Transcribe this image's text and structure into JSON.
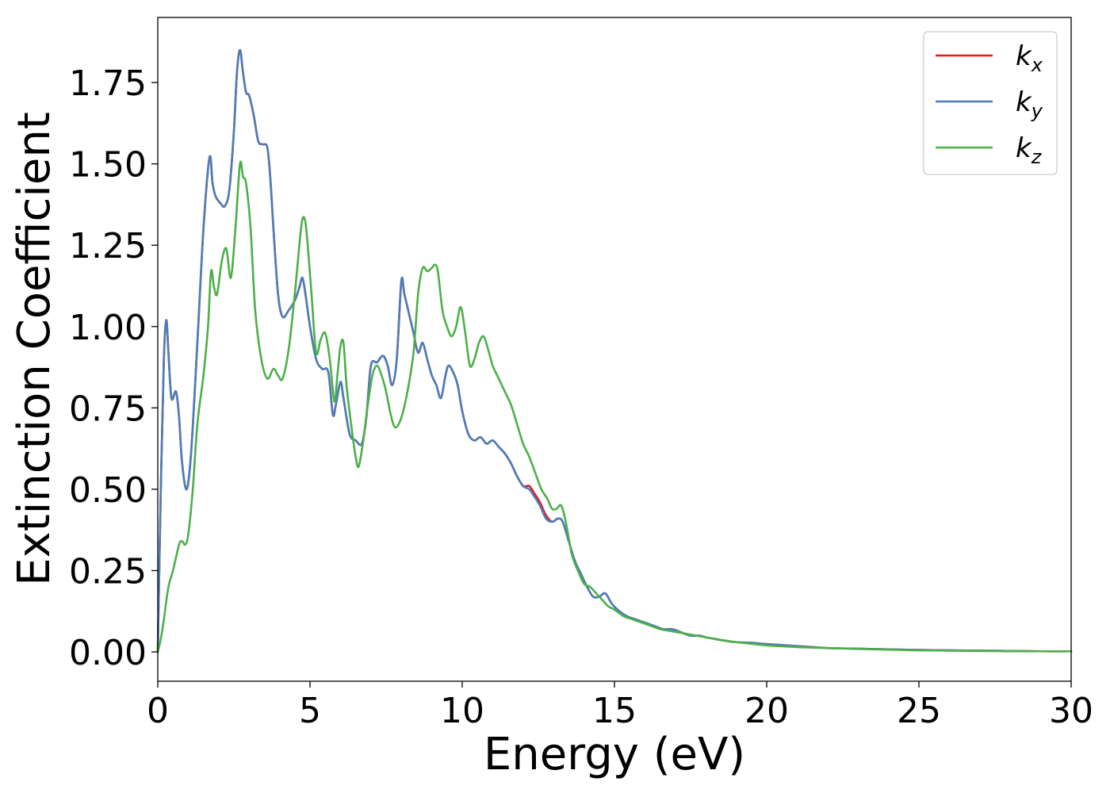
{
  "chart_data": {
    "type": "line",
    "xlabel": "Energy (eV)",
    "ylabel": "Extinction Coefficient",
    "xlim": [
      0,
      30
    ],
    "ylim": [
      -0.09,
      1.95
    ],
    "xticks": [
      0,
      5,
      10,
      15,
      20,
      25,
      30
    ],
    "xtick_labels": [
      "0",
      "5",
      "10",
      "15",
      "20",
      "25",
      "30"
    ],
    "yticks": [
      0.0,
      0.25,
      0.5,
      0.75,
      1.0,
      1.25,
      1.5,
      1.75
    ],
    "ytick_labels": [
      "0.00",
      "0.25",
      "0.50",
      "0.75",
      "1.00",
      "1.25",
      "1.50",
      "1.75"
    ],
    "grid": false,
    "legend_position": "top-right",
    "series": [
      {
        "name": "kx",
        "label_base": "k",
        "label_sub": "x",
        "color": "#e41a1c",
        "x": [
          0,
          0.1,
          0.2,
          0.28,
          0.35,
          0.45,
          0.6,
          0.7,
          0.8,
          0.95,
          1.1,
          1.3,
          1.5,
          1.7,
          1.8,
          1.9,
          2.05,
          2.2,
          2.35,
          2.5,
          2.6,
          2.7,
          2.8,
          2.9,
          3.0,
          3.15,
          3.3,
          3.45,
          3.6,
          3.7,
          3.8,
          3.95,
          4.1,
          4.3,
          4.5,
          4.65,
          4.75,
          4.85,
          5.0,
          5.2,
          5.4,
          5.6,
          5.75,
          5.85,
          6.0,
          6.1,
          6.3,
          6.5,
          6.7,
          6.85,
          7.0,
          7.2,
          7.4,
          7.55,
          7.7,
          7.85,
          8.0,
          8.1,
          8.25,
          8.4,
          8.55,
          8.7,
          8.85,
          9.0,
          9.15,
          9.3,
          9.45,
          9.55,
          9.7,
          9.85,
          10.0,
          10.2,
          10.4,
          10.6,
          10.8,
          11.0,
          11.2,
          11.4,
          11.6,
          11.8,
          12.0,
          12.2,
          12.35,
          12.55,
          12.75,
          12.95,
          13.15,
          13.3,
          13.5,
          13.7,
          13.9,
          14.1,
          14.3,
          14.5,
          14.7,
          14.9,
          15.1,
          15.4,
          15.7,
          16.0,
          16.3,
          16.6,
          16.9,
          17.2,
          17.5,
          17.8,
          18.0,
          18.3,
          18.6,
          19.0,
          19.5,
          20.0,
          21.0,
          22.0,
          23.0,
          24.0,
          25.0,
          26.0,
          27.0,
          28.0,
          29.0,
          30.0
        ],
        "y": [
          0.0,
          0.5,
          0.9,
          1.02,
          0.92,
          0.78,
          0.8,
          0.72,
          0.58,
          0.5,
          0.62,
          0.95,
          1.3,
          1.52,
          1.44,
          1.4,
          1.38,
          1.37,
          1.42,
          1.6,
          1.78,
          1.85,
          1.78,
          1.72,
          1.71,
          1.65,
          1.57,
          1.56,
          1.55,
          1.45,
          1.3,
          1.1,
          1.03,
          1.05,
          1.08,
          1.12,
          1.15,
          1.1,
          1.0,
          0.9,
          0.87,
          0.86,
          0.73,
          0.76,
          0.83,
          0.78,
          0.67,
          0.65,
          0.64,
          0.72,
          0.88,
          0.89,
          0.91,
          0.88,
          0.82,
          0.9,
          1.14,
          1.1,
          1.04,
          0.98,
          0.92,
          0.95,
          0.9,
          0.85,
          0.82,
          0.78,
          0.85,
          0.88,
          0.86,
          0.82,
          0.74,
          0.67,
          0.65,
          0.66,
          0.64,
          0.65,
          0.63,
          0.61,
          0.58,
          0.54,
          0.51,
          0.51,
          0.49,
          0.46,
          0.42,
          0.4,
          0.41,
          0.4,
          0.34,
          0.28,
          0.24,
          0.2,
          0.17,
          0.17,
          0.18,
          0.15,
          0.13,
          0.11,
          0.1,
          0.09,
          0.08,
          0.07,
          0.07,
          0.06,
          0.05,
          0.05,
          0.045,
          0.04,
          0.035,
          0.03,
          0.028,
          0.024,
          0.018,
          0.012,
          0.01,
          0.008,
          0.006,
          0.005,
          0.004,
          0.003,
          0.002,
          0.002
        ]
      },
      {
        "name": "ky",
        "label_base": "k",
        "label_sub": "y",
        "color": "#4a7ebb",
        "x": [
          0,
          0.1,
          0.2,
          0.28,
          0.35,
          0.45,
          0.6,
          0.7,
          0.8,
          0.95,
          1.1,
          1.3,
          1.5,
          1.7,
          1.8,
          1.9,
          2.05,
          2.2,
          2.35,
          2.5,
          2.6,
          2.7,
          2.8,
          2.9,
          3.0,
          3.15,
          3.3,
          3.45,
          3.6,
          3.7,
          3.8,
          3.95,
          4.1,
          4.3,
          4.5,
          4.65,
          4.75,
          4.85,
          5.0,
          5.2,
          5.4,
          5.6,
          5.75,
          5.85,
          6.0,
          6.1,
          6.3,
          6.5,
          6.7,
          6.85,
          7.0,
          7.2,
          7.4,
          7.55,
          7.7,
          7.85,
          8.0,
          8.1,
          8.25,
          8.4,
          8.55,
          8.7,
          8.85,
          9.0,
          9.15,
          9.3,
          9.45,
          9.55,
          9.7,
          9.85,
          10.0,
          10.2,
          10.4,
          10.6,
          10.8,
          11.0,
          11.2,
          11.4,
          11.6,
          11.8,
          12.0,
          12.2,
          12.35,
          12.55,
          12.75,
          12.95,
          13.15,
          13.3,
          13.5,
          13.7,
          13.9,
          14.1,
          14.3,
          14.5,
          14.7,
          14.9,
          15.1,
          15.4,
          15.7,
          16.0,
          16.3,
          16.6,
          16.9,
          17.2,
          17.5,
          17.8,
          18.0,
          18.3,
          18.6,
          19.0,
          19.5,
          20.0,
          21.0,
          22.0,
          23.0,
          24.0,
          25.0,
          26.0,
          27.0,
          28.0,
          29.0,
          30.0
        ],
        "y": [
          0.0,
          0.5,
          0.9,
          1.02,
          0.92,
          0.78,
          0.8,
          0.72,
          0.58,
          0.5,
          0.62,
          0.95,
          1.3,
          1.52,
          1.44,
          1.4,
          1.38,
          1.37,
          1.42,
          1.6,
          1.78,
          1.85,
          1.78,
          1.72,
          1.71,
          1.65,
          1.57,
          1.56,
          1.55,
          1.45,
          1.3,
          1.1,
          1.03,
          1.05,
          1.08,
          1.12,
          1.15,
          1.1,
          1.0,
          0.9,
          0.87,
          0.86,
          0.73,
          0.76,
          0.83,
          0.78,
          0.67,
          0.65,
          0.64,
          0.72,
          0.88,
          0.89,
          0.91,
          0.88,
          0.82,
          0.9,
          1.14,
          1.1,
          1.04,
          0.98,
          0.92,
          0.95,
          0.9,
          0.85,
          0.82,
          0.78,
          0.85,
          0.88,
          0.86,
          0.82,
          0.74,
          0.67,
          0.65,
          0.66,
          0.64,
          0.65,
          0.63,
          0.61,
          0.58,
          0.54,
          0.51,
          0.5,
          0.48,
          0.45,
          0.41,
          0.4,
          0.41,
          0.4,
          0.34,
          0.28,
          0.24,
          0.2,
          0.17,
          0.17,
          0.18,
          0.15,
          0.13,
          0.11,
          0.1,
          0.09,
          0.08,
          0.07,
          0.07,
          0.06,
          0.05,
          0.05,
          0.045,
          0.04,
          0.035,
          0.03,
          0.028,
          0.024,
          0.018,
          0.012,
          0.01,
          0.008,
          0.006,
          0.005,
          0.004,
          0.003,
          0.002,
          0.002
        ]
      },
      {
        "name": "kz",
        "label_base": "k",
        "label_sub": "z",
        "color": "#4daf4a",
        "x": [
          0,
          0.1,
          0.2,
          0.35,
          0.5,
          0.7,
          0.8,
          0.9,
          1.0,
          1.15,
          1.3,
          1.5,
          1.65,
          1.75,
          1.85,
          1.95,
          2.1,
          2.25,
          2.4,
          2.55,
          2.7,
          2.8,
          2.9,
          3.05,
          3.2,
          3.4,
          3.6,
          3.8,
          3.95,
          4.1,
          4.3,
          4.5,
          4.65,
          4.75,
          4.85,
          4.95,
          5.05,
          5.2,
          5.35,
          5.5,
          5.65,
          5.8,
          5.9,
          6.0,
          6.1,
          6.2,
          6.35,
          6.5,
          6.6,
          6.75,
          6.9,
          7.05,
          7.2,
          7.35,
          7.5,
          7.65,
          7.8,
          8.0,
          8.2,
          8.4,
          8.55,
          8.7,
          8.85,
          9.0,
          9.1,
          9.2,
          9.35,
          9.5,
          9.65,
          9.8,
          9.95,
          10.1,
          10.25,
          10.4,
          10.55,
          10.7,
          10.85,
          11.0,
          11.2,
          11.4,
          11.6,
          11.8,
          12.0,
          12.2,
          12.4,
          12.6,
          12.8,
          12.95,
          13.1,
          13.25,
          13.4,
          13.6,
          13.8,
          14.0,
          14.2,
          14.4,
          14.6,
          14.8,
          15.0,
          15.3,
          15.6,
          15.9,
          16.2,
          16.5,
          16.8,
          17.1,
          17.4,
          17.7,
          18.0,
          18.3,
          18.6,
          19.0,
          19.5,
          20.0,
          21.0,
          22.0,
          23.0,
          24.0,
          25.0,
          26.0,
          27.0,
          28.0,
          29.0,
          30.0
        ],
        "y": [
          0.0,
          0.04,
          0.1,
          0.2,
          0.25,
          0.33,
          0.34,
          0.33,
          0.36,
          0.5,
          0.7,
          0.85,
          1.0,
          1.17,
          1.12,
          1.1,
          1.2,
          1.24,
          1.15,
          1.3,
          1.5,
          1.46,
          1.44,
          1.3,
          1.05,
          0.9,
          0.84,
          0.87,
          0.85,
          0.84,
          0.93,
          1.1,
          1.25,
          1.33,
          1.32,
          1.22,
          1.1,
          0.92,
          0.96,
          0.98,
          0.9,
          0.77,
          0.85,
          0.94,
          0.95,
          0.82,
          0.7,
          0.6,
          0.57,
          0.65,
          0.76,
          0.85,
          0.88,
          0.85,
          0.8,
          0.73,
          0.69,
          0.72,
          0.8,
          0.92,
          1.1,
          1.18,
          1.17,
          1.18,
          1.19,
          1.17,
          1.05,
          1.0,
          0.97,
          1.0,
          1.06,
          0.98,
          0.88,
          0.9,
          0.95,
          0.97,
          0.93,
          0.88,
          0.84,
          0.8,
          0.76,
          0.7,
          0.64,
          0.6,
          0.55,
          0.5,
          0.47,
          0.44,
          0.44,
          0.45,
          0.4,
          0.3,
          0.25,
          0.21,
          0.2,
          0.18,
          0.16,
          0.14,
          0.13,
          0.11,
          0.1,
          0.09,
          0.08,
          0.07,
          0.065,
          0.06,
          0.055,
          0.05,
          0.045,
          0.04,
          0.035,
          0.03,
          0.025,
          0.02,
          0.015,
          0.012,
          0.009,
          0.007,
          0.005,
          0.004,
          0.003,
          0.002,
          0.002,
          0.002
        ]
      }
    ]
  }
}
